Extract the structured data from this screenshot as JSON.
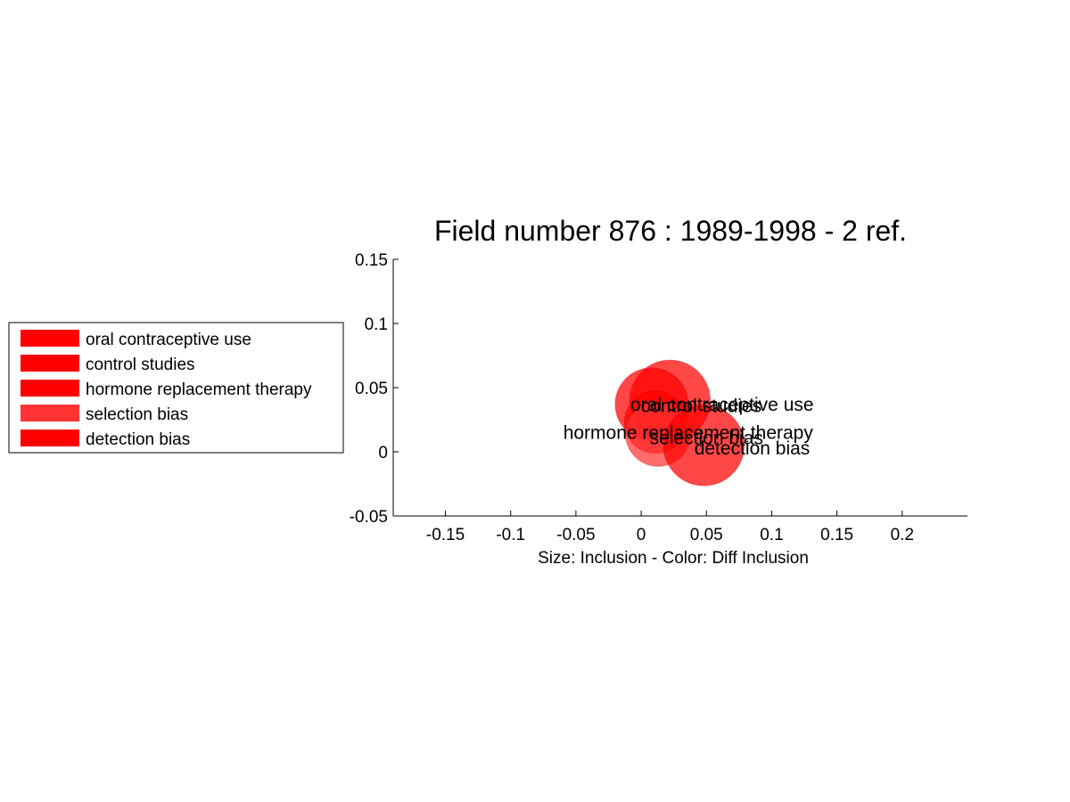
{
  "chart_data": {
    "type": "scatter",
    "title": "Field number 876 : 1989-1998  - 2 ref.",
    "xlabel": "Size: Inclusion - Color: Diff Inclusion",
    "ylabel": "",
    "xlim": [
      -0.19,
      0.25
    ],
    "ylim": [
      -0.05,
      0.15
    ],
    "xticks": [
      -0.15,
      -0.1,
      -0.05,
      0,
      0.05,
      0.1,
      0.15,
      0.2
    ],
    "xtick_labels": [
      "-0.15",
      "-0.1",
      "-0.05",
      "0",
      "0.05",
      "0.1",
      "0.15",
      "0.2"
    ],
    "yticks": [
      -0.05,
      0,
      0.05,
      0.1,
      0.15
    ],
    "ytick_labels": [
      "-0.05",
      "0",
      "0.05",
      "0.1",
      "0.15"
    ],
    "legend_position": "left",
    "points": [
      {
        "name": "oral contraceptive use",
        "x": 0.022,
        "y": 0.04,
        "size": 0.031,
        "color": "#ff0000",
        "label_x": 0.062,
        "label_y": 0.032
      },
      {
        "name": "control studies",
        "x": 0.008,
        "y": 0.037,
        "size": 0.028,
        "color": "#ff0000",
        "label_x": 0.046,
        "label_y": 0.031
      },
      {
        "name": "hormone replacement therapy",
        "x": 0.011,
        "y": 0.023,
        "size": 0.024,
        "color": "#ff0000",
        "label_x": 0.036,
        "label_y": 0.01
      },
      {
        "name": "selection bias",
        "x": 0.013,
        "y": 0.014,
        "size": 0.025,
        "color": "#ff3333",
        "label_x": 0.05,
        "label_y": 0.006
      },
      {
        "name": "detection bias",
        "x": 0.048,
        "y": 0.005,
        "size": 0.031,
        "color": "#ff0000",
        "label_x": 0.085,
        "label_y": -0.002
      }
    ]
  }
}
